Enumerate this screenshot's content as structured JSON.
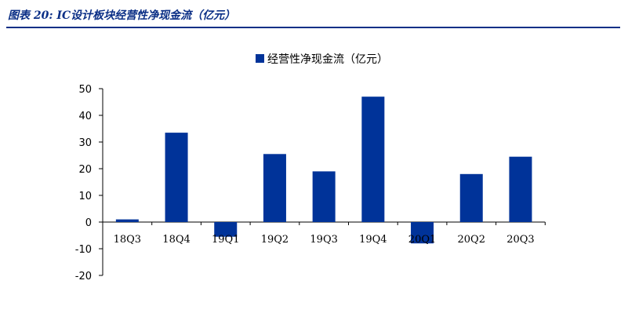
{
  "figure": {
    "caption": "图表 20:  IC设计板块经营性净现金流（亿元）"
  },
  "colors": {
    "bar": "#003399",
    "axis": "#000000",
    "accent": "#0b2f86"
  },
  "chart_data": {
    "type": "bar",
    "categories": [
      "18Q3",
      "18Q4",
      "19Q1",
      "19Q2",
      "19Q3",
      "19Q4",
      "20Q1",
      "20Q2",
      "20Q3"
    ],
    "series": [
      {
        "name": "经营性净现金流（亿元）",
        "values": [
          1,
          33.5,
          -5.5,
          25.5,
          19,
          47,
          -8,
          18,
          24.5
        ]
      }
    ],
    "ylim": [
      -20,
      50
    ],
    "yticks": [
      50,
      40,
      30,
      20,
      10,
      0,
      -10,
      -20
    ],
    "grid": false,
    "legend": "top"
  }
}
